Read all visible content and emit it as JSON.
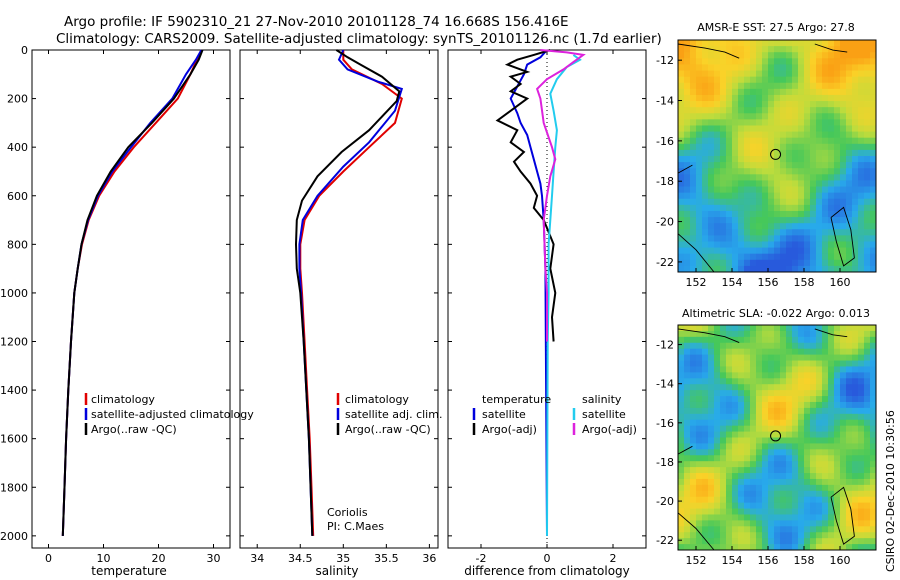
{
  "header": {
    "line1": "Argo profile: IF 5902310_21 27-Nov-2010 20101128_74 16.668S 156.416E",
    "line2": "Climatology: CARS2009. Satellite-adjusted climatology: synTS_20101126.nc (1.7d earlier)"
  },
  "side_label": "CSIRO 02-Dec-2010 10:30:56",
  "colors": {
    "clim": "#e00000",
    "sat": "#0000dd",
    "argo": "#000000",
    "sal_sat": "#22ccee",
    "sal_argo": "#dd22dd"
  },
  "chart_data": [
    {
      "type": "line",
      "xlabel": "temperature",
      "xlim": [
        -3,
        33
      ],
      "ylim": [
        0,
        2050
      ],
      "xticks": [
        0,
        10,
        20,
        30
      ],
      "yticks": [
        0,
        200,
        400,
        600,
        800,
        1000,
        1200,
        1400,
        1600,
        1800,
        2000
      ],
      "legend": [
        "climatology",
        "satellite-adjusted climatology",
        "Argo(..raw -QC)"
      ],
      "series": [
        {
          "name": "climatology",
          "key": "clim",
          "points": [
            [
              27.8,
              0
            ],
            [
              27,
              40
            ],
            [
              25.8,
              100
            ],
            [
              23.5,
              200
            ],
            [
              19.5,
              300
            ],
            [
              15.5,
              400
            ],
            [
              12,
              500
            ],
            [
              9.2,
              600
            ],
            [
              7.3,
              700
            ],
            [
              6.1,
              800
            ],
            [
              5.3,
              900
            ],
            [
              4.7,
              1000
            ],
            [
              4.1,
              1200
            ],
            [
              3.6,
              1400
            ],
            [
              3.2,
              1600
            ],
            [
              2.9,
              1800
            ],
            [
              2.6,
              2000
            ]
          ]
        },
        {
          "name": "satellite",
          "key": "sat",
          "points": [
            [
              27.8,
              0
            ],
            [
              26.8,
              40
            ],
            [
              25,
              100
            ],
            [
              22.5,
              200
            ],
            [
              18.5,
              300
            ],
            [
              15,
              400
            ],
            [
              11.6,
              500
            ],
            [
              9,
              600
            ],
            [
              7.2,
              700
            ],
            [
              6,
              800
            ],
            [
              5.3,
              900
            ],
            [
              4.7,
              1000
            ],
            [
              4.1,
              1200
            ],
            [
              3.6,
              1400
            ],
            [
              3.2,
              1600
            ],
            [
              2.9,
              1800
            ],
            [
              2.6,
              2000
            ]
          ]
        },
        {
          "name": "argo",
          "key": "argo",
          "points": [
            [
              28,
              0
            ],
            [
              27.3,
              40
            ],
            [
              25.8,
              100
            ],
            [
              22.8,
              200
            ],
            [
              18.8,
              300
            ],
            [
              14.5,
              400
            ],
            [
              11.3,
              500
            ],
            [
              8.8,
              600
            ],
            [
              7.1,
              700
            ],
            [
              6,
              800
            ],
            [
              5.3,
              900
            ],
            [
              4.7,
              1000
            ],
            [
              4.1,
              1200
            ],
            [
              3.6,
              1400
            ],
            [
              3.2,
              1600
            ],
            [
              2.9,
              1800
            ],
            [
              2.6,
              2000
            ]
          ]
        }
      ]
    },
    {
      "type": "line",
      "xlabel": "salinity",
      "xlim": [
        33.8,
        36.1
      ],
      "ylim": [
        0,
        2050
      ],
      "xticks": [
        34,
        34.5,
        35,
        35.5,
        36
      ],
      "legend": [
        "climatology",
        "satellite adj. clim.",
        "Argo(..raw -QC)"
      ],
      "series": [
        {
          "name": "climatology",
          "key": "clim",
          "points": [
            [
              35,
              0
            ],
            [
              35,
              40
            ],
            [
              35.1,
              80
            ],
            [
              35.45,
              140
            ],
            [
              35.68,
              200
            ],
            [
              35.6,
              300
            ],
            [
              35.3,
              400
            ],
            [
              35,
              500
            ],
            [
              34.72,
              600
            ],
            [
              34.55,
              700
            ],
            [
              34.5,
              800
            ],
            [
              34.5,
              900
            ],
            [
              34.52,
              1000
            ],
            [
              34.55,
              1200
            ],
            [
              34.58,
              1400
            ],
            [
              34.61,
              1600
            ],
            [
              34.63,
              1800
            ],
            [
              34.65,
              2000
            ]
          ]
        },
        {
          "name": "satellite",
          "key": "sat",
          "points": [
            [
              35,
              0
            ],
            [
              34.95,
              40
            ],
            [
              35.05,
              80
            ],
            [
              35.4,
              130
            ],
            [
              35.68,
              160
            ],
            [
              35.6,
              250
            ],
            [
              35.3,
              380
            ],
            [
              35,
              480
            ],
            [
              34.7,
              600
            ],
            [
              34.53,
              700
            ],
            [
              34.49,
              800
            ],
            [
              34.49,
              900
            ],
            [
              34.51,
              1000
            ],
            [
              34.54,
              1200
            ],
            [
              34.57,
              1400
            ],
            [
              34.6,
              1600
            ],
            [
              34.62,
              1800
            ],
            [
              34.64,
              2000
            ]
          ]
        },
        {
          "name": "argo",
          "key": "argo",
          "points": [
            [
              34.92,
              0
            ],
            [
              35.05,
              30
            ],
            [
              35.2,
              60
            ],
            [
              35.45,
              110
            ],
            [
              35.65,
              170
            ],
            [
              35.62,
              210
            ],
            [
              35.3,
              330
            ],
            [
              34.98,
              420
            ],
            [
              34.7,
              520
            ],
            [
              34.52,
              620
            ],
            [
              34.46,
              700
            ],
            [
              34.45,
              800
            ],
            [
              34.46,
              900
            ],
            [
              34.5,
              1000
            ],
            [
              34.54,
              1200
            ],
            [
              34.57,
              1400
            ],
            [
              34.6,
              1600
            ],
            [
              34.62,
              1800
            ],
            [
              34.64,
              2000
            ]
          ]
        }
      ],
      "annotation": [
        "Coriolis",
        "PI: C.Maes"
      ]
    },
    {
      "type": "line",
      "xlabel": "difference from climatology",
      "xlim": [
        -3,
        3
      ],
      "ylim": [
        0,
        2050
      ],
      "xticks": [
        -2,
        0,
        2
      ],
      "legend_left_title": "temperature",
      "legend_left": [
        "satellite",
        "Argo(-adj)"
      ],
      "legend_right_title": "salinity",
      "legend_right": [
        "satellite",
        "Argo(-adj)"
      ],
      "series": [
        {
          "name": "temperature satellite",
          "key": "sat",
          "points": [
            [
              0,
              0
            ],
            [
              -0.2,
              30
            ],
            [
              -0.6,
              60
            ],
            [
              -0.7,
              100
            ],
            [
              -0.9,
              150
            ],
            [
              -1.1,
              200
            ],
            [
              -0.9,
              260
            ],
            [
              -0.8,
              300
            ],
            [
              -0.6,
              350
            ],
            [
              -0.5,
              400
            ],
            [
              -0.4,
              450
            ],
            [
              -0.3,
              500
            ],
            [
              -0.2,
              550
            ],
            [
              -0.15,
              600
            ],
            [
              -0.1,
              700
            ],
            [
              -0.05,
              900
            ],
            [
              0,
              2000
            ]
          ]
        },
        {
          "name": "temperature argo",
          "key": "argo",
          "points": [
            [
              0.1,
              0
            ],
            [
              -0.4,
              20
            ],
            [
              -0.9,
              40
            ],
            [
              -1.2,
              60
            ],
            [
              -0.6,
              90
            ],
            [
              -1.1,
              110
            ],
            [
              -0.8,
              140
            ],
            [
              -1.1,
              170
            ],
            [
              -0.6,
              200
            ],
            [
              -1.0,
              240
            ],
            [
              -1.5,
              290
            ],
            [
              -0.9,
              330
            ],
            [
              -1.1,
              380
            ],
            [
              -0.7,
              420
            ],
            [
              -1.0,
              460
            ],
            [
              -0.8,
              500
            ],
            [
              -0.5,
              550
            ],
            [
              -0.3,
              600
            ],
            [
              -0.4,
              650
            ],
            [
              -0.1,
              700
            ],
            [
              0.2,
              800
            ],
            [
              0.1,
              900
            ],
            [
              0.25,
              1000
            ],
            [
              0.15,
              1100
            ],
            [
              0.2,
              1200
            ]
          ]
        },
        {
          "name": "salinity satellite",
          "key": "sal_sat",
          "points": [
            [
              0.8,
              20
            ],
            [
              1.0,
              40
            ],
            [
              0.6,
              70
            ],
            [
              0.3,
              120
            ],
            [
              0.1,
              180
            ],
            [
              0.2,
              250
            ],
            [
              0.3,
              330
            ],
            [
              0.25,
              400
            ],
            [
              0.2,
              500
            ],
            [
              0.15,
              600
            ],
            [
              0.1,
              700
            ],
            [
              0.05,
              800
            ],
            [
              0.05,
              1000
            ],
            [
              0.02,
              1200
            ],
            [
              0,
              2000
            ]
          ]
        },
        {
          "name": "salinity argo",
          "key": "sal_argo",
          "points": [
            [
              -0.2,
              0
            ],
            [
              0.6,
              10
            ],
            [
              1.1,
              20
            ],
            [
              0.8,
              50
            ],
            [
              0.5,
              80
            ],
            [
              0,
              120
            ],
            [
              -0.3,
              160
            ],
            [
              -0.2,
              200
            ],
            [
              -0.1,
              300
            ],
            [
              0.15,
              400
            ],
            [
              0.25,
              450
            ],
            [
              0.1,
              520
            ],
            [
              0,
              600
            ],
            [
              -0.1,
              700
            ],
            [
              -0.05,
              900
            ],
            [
              0,
              1000
            ],
            [
              0,
              1200
            ]
          ]
        }
      ]
    },
    {
      "type": "heatmap",
      "title": "AMSR-E SST: 27.5  Argo: 27.8",
      "xlim": [
        151,
        162
      ],
      "ylim": [
        -22.5,
        -11
      ],
      "xticks": [
        152,
        154,
        156,
        158,
        160
      ],
      "yticks": [
        -12,
        -14,
        -16,
        -18,
        -20,
        -22
      ],
      "marker": [
        156.42,
        -16.67
      ]
    },
    {
      "type": "heatmap",
      "title": "Altimetric SLA: -0.022  Argo: 0.013",
      "xlim": [
        151,
        162
      ],
      "ylim": [
        -22.5,
        -11
      ],
      "xticks": [
        152,
        154,
        156,
        158,
        160
      ],
      "yticks": [
        -12,
        -14,
        -16,
        -18,
        -20,
        -22
      ],
      "marker": [
        156.42,
        -16.67
      ]
    }
  ]
}
